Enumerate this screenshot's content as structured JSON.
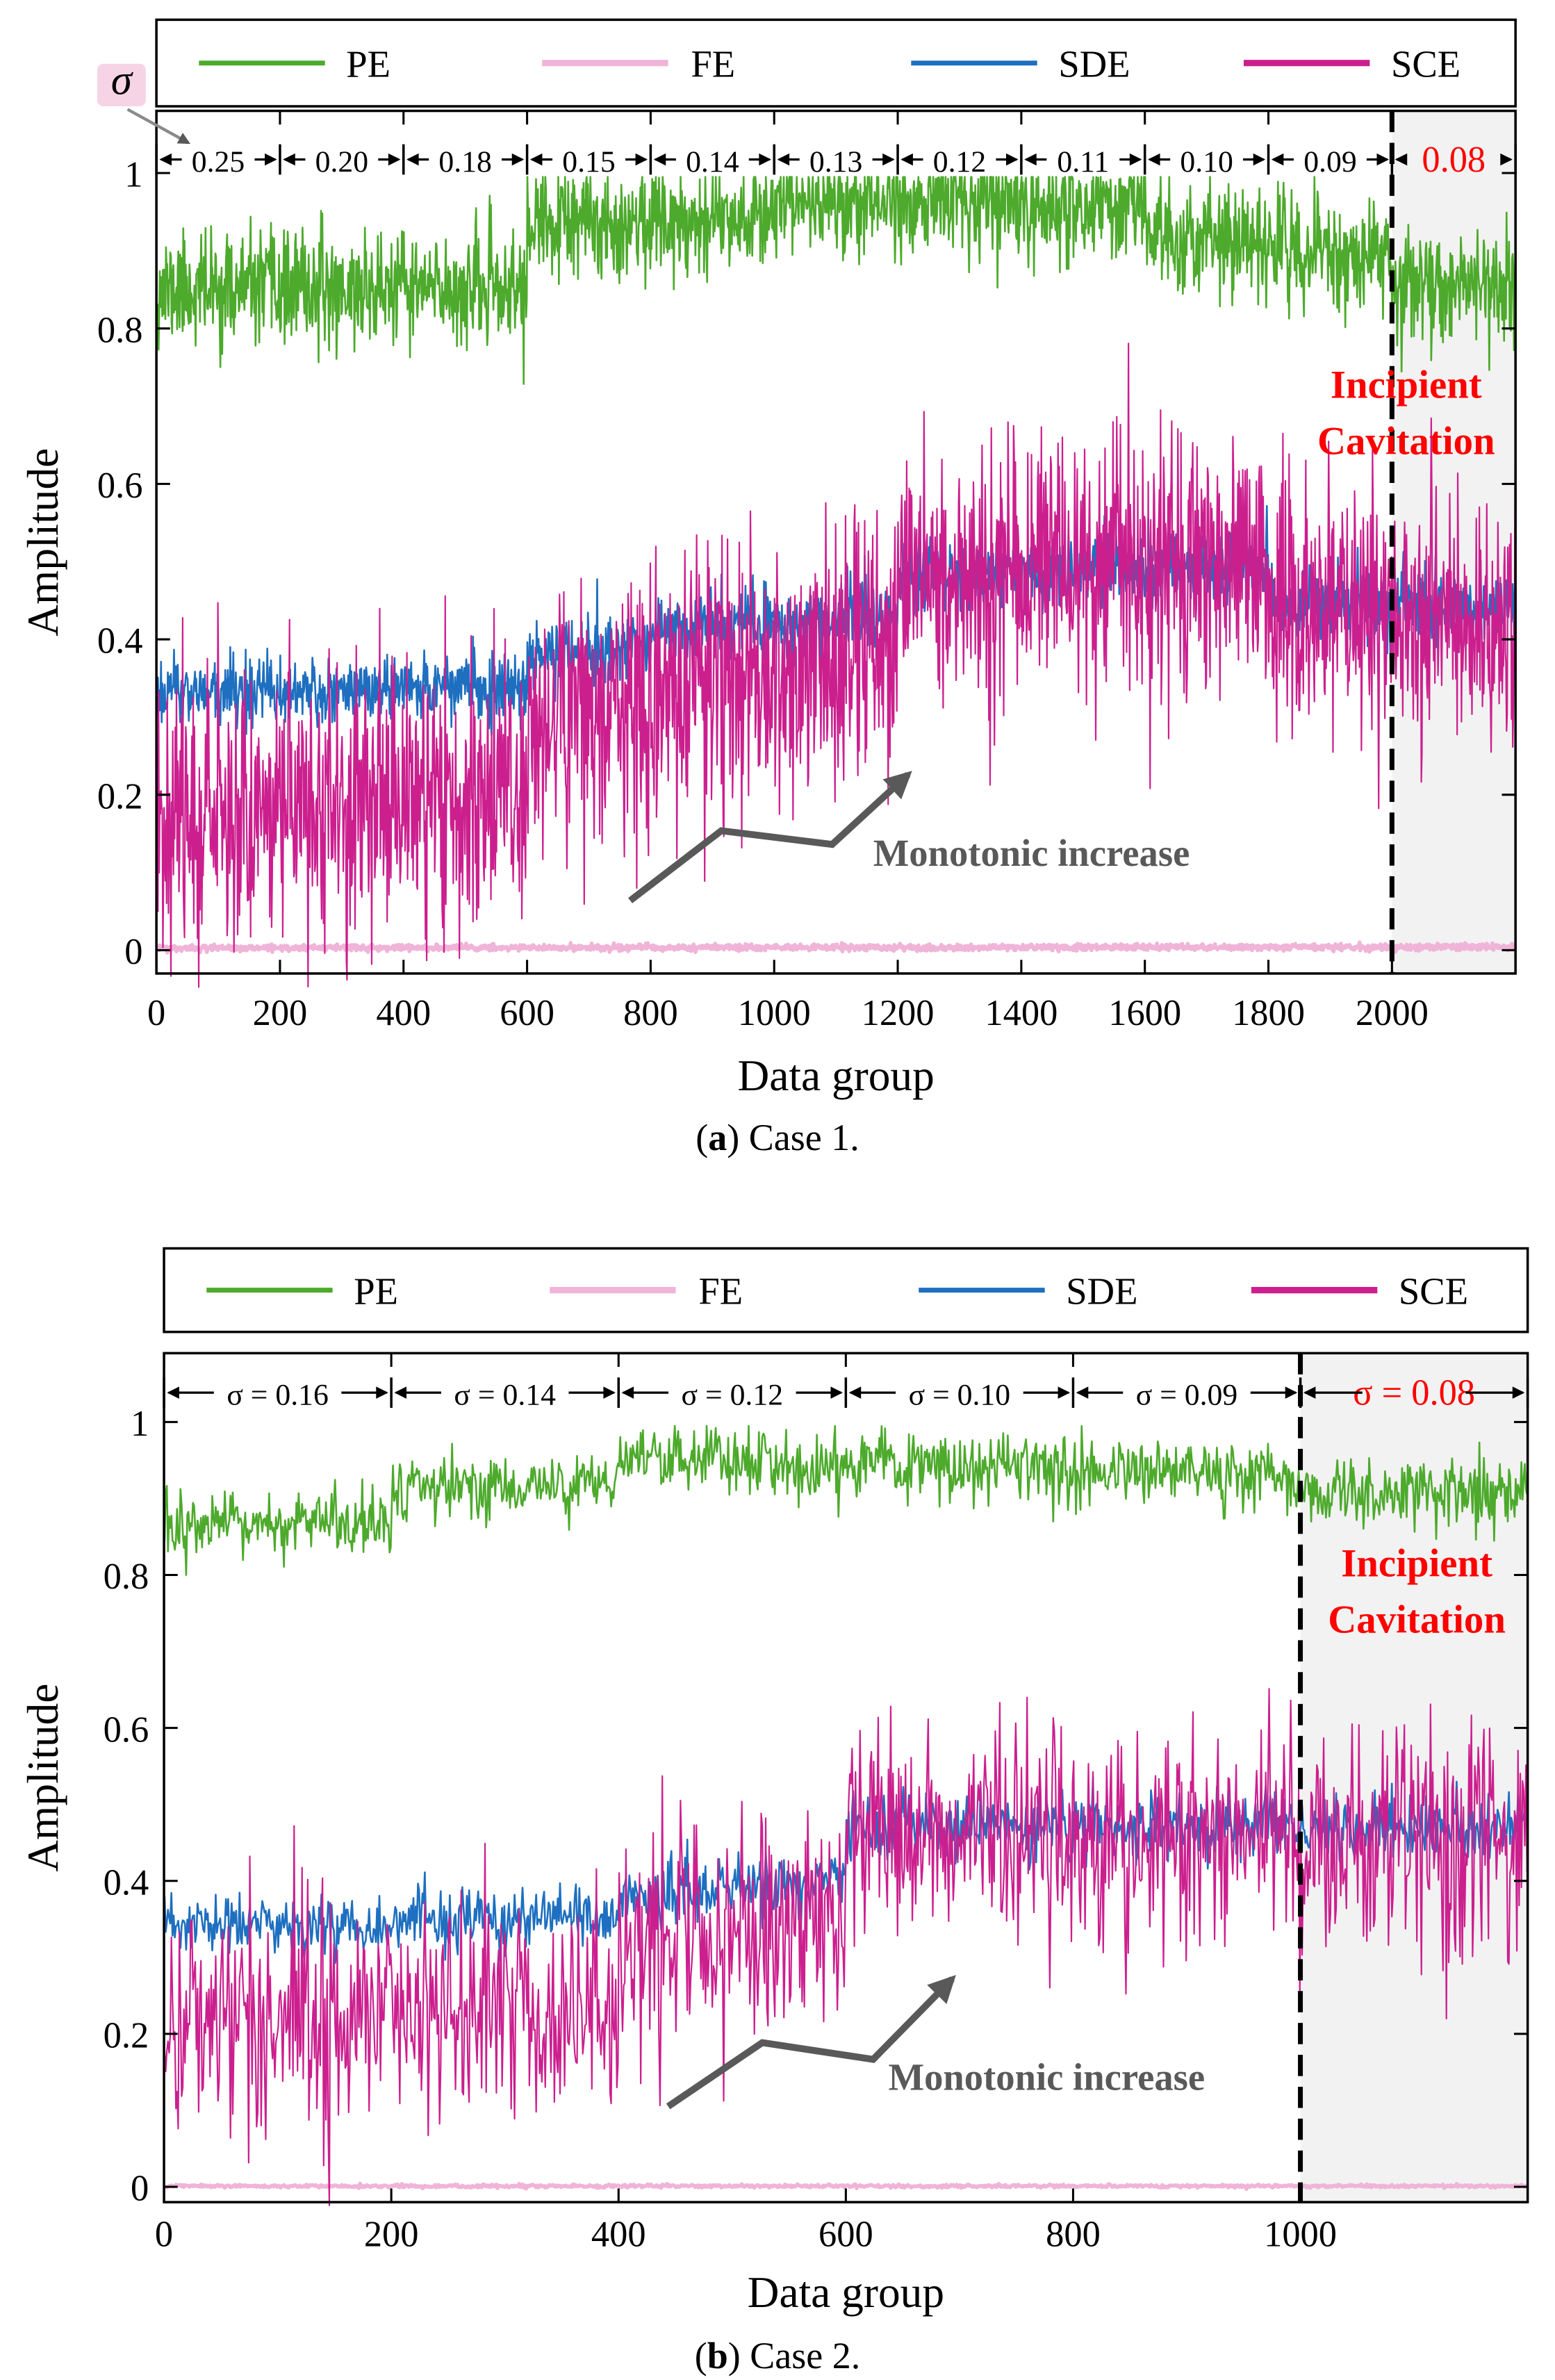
{
  "figure": {
    "captions": [
      {
        "letter": "a",
        "text": " Case 1."
      },
      {
        "letter": "b",
        "text": " Case 2."
      }
    ]
  },
  "chart_data": [
    {
      "type": "line",
      "panel": "a",
      "xlabel": "Data group",
      "ylabel": "Amplitude",
      "xlim": [
        0,
        2200
      ],
      "ylim": [
        -0.03,
        1.08
      ],
      "xticks": [
        0,
        200,
        400,
        600,
        800,
        1000,
        1200,
        1400,
        1600,
        1800,
        2000
      ],
      "yticks": [
        0,
        0.2,
        0.4,
        0.6,
        0.8,
        1
      ],
      "ytick_labels": [
        "0",
        "0.2",
        "0.4",
        "0.6",
        "0.8",
        "1"
      ],
      "legend": {
        "placement": "top, outside",
        "entries": [
          "PE",
          "FE",
          "SDE",
          "SCE"
        ]
      },
      "colors": {
        "PE": "#4daa2c",
        "FE": "#f0b4d8",
        "SDE": "#1e6fc0",
        "SCE": "#cc1f8e",
        "shade": "#f2f2f2",
        "incipient": "#ff0000",
        "arrow": "#595959"
      },
      "sigma_label": "σ",
      "sigma_segments": [
        {
          "from": 0,
          "to": 200,
          "label": "0.25"
        },
        {
          "from": 200,
          "to": 400,
          "label": "0.20"
        },
        {
          "from": 400,
          "to": 600,
          "label": "0.18"
        },
        {
          "from": 600,
          "to": 800,
          "label": "0.15"
        },
        {
          "from": 800,
          "to": 1000,
          "label": "0.14"
        },
        {
          "from": 1000,
          "to": 1200,
          "label": "0.13"
        },
        {
          "from": 1200,
          "to": 1400,
          "label": "0.12"
        },
        {
          "from": 1400,
          "to": 1600,
          "label": "0.11"
        },
        {
          "from": 1600,
          "to": 1800,
          "label": "0.10"
        },
        {
          "from": 1800,
          "to": 2000,
          "label": "0.09"
        },
        {
          "from": 2000,
          "to": 2200,
          "label": "0.08"
        }
      ],
      "incipient_x": 2000,
      "incipient_text": [
        "Incipient",
        "Cavitation"
      ],
      "annotation": "Monotonic increase",
      "series": [
        {
          "name": "PE",
          "n": 2200,
          "seed": 11,
          "noise": 0.035,
          "clipMax": 0.995,
          "segments": [
            {
              "from": 0,
              "to": 600,
              "v0": 0.85,
              "v1": 0.85
            },
            {
              "from": 600,
              "to": 1000,
              "v0": 0.93,
              "v1": 0.95
            },
            {
              "from": 1000,
              "to": 1600,
              "v0": 0.965,
              "v1": 0.96
            },
            {
              "from": 1600,
              "to": 2000,
              "v0": 0.92,
              "v1": 0.89
            },
            {
              "from": 2000,
              "to": 2200,
              "v0": 0.86,
              "v1": 0.85
            }
          ]
        },
        {
          "name": "FE",
          "n": 2200,
          "seed": 3,
          "noise": 0.002,
          "segments": [
            {
              "from": 0,
              "to": 2200,
              "v0": 0.003,
              "v1": 0.004
            }
          ]
        },
        {
          "name": "SDE",
          "n": 2200,
          "seed": 21,
          "noise": 0.022,
          "segments": [
            {
              "from": 0,
              "to": 600,
              "v0": 0.33,
              "v1": 0.34
            },
            {
              "from": 600,
              "to": 800,
              "v0": 0.38,
              "v1": 0.39
            },
            {
              "from": 800,
              "to": 1200,
              "v0": 0.41,
              "v1": 0.43
            },
            {
              "from": 1200,
              "to": 1800,
              "v0": 0.48,
              "v1": 0.5
            },
            {
              "from": 1800,
              "to": 2200,
              "v0": 0.45,
              "v1": 0.44
            }
          ]
        },
        {
          "name": "SCE",
          "n": 2200,
          "seed": 37,
          "noise": 0.085,
          "segments": [
            {
              "from": 0,
              "to": 600,
              "v0": 0.18,
              "v1": 0.2
            },
            {
              "from": 600,
              "to": 1200,
              "v0": 0.29,
              "v1": 0.39
            },
            {
              "from": 1200,
              "to": 1800,
              "v0": 0.48,
              "v1": 0.5
            },
            {
              "from": 1800,
              "to": 2200,
              "v0": 0.44,
              "v1": 0.41
            }
          ]
        }
      ]
    },
    {
      "type": "line",
      "panel": "b",
      "xlabel": "Data group",
      "ylabel": "Amplitude",
      "xlim": [
        0,
        1200
      ],
      "ylim": [
        -0.02,
        1.09
      ],
      "xticks": [
        0,
        200,
        400,
        600,
        800,
        1000
      ],
      "yticks": [
        0,
        0.2,
        0.4,
        0.6,
        0.8,
        1
      ],
      "ytick_labels": [
        "0",
        "0.2",
        "0.4",
        "0.6",
        "0.8",
        "1"
      ],
      "legend": {
        "placement": "top, outside",
        "entries": [
          "PE",
          "FE",
          "SDE",
          "SCE"
        ]
      },
      "colors": {
        "PE": "#4daa2c",
        "FE": "#f0b4d8",
        "SDE": "#1e6fc0",
        "SCE": "#cc1f8e",
        "shade": "#f2f2f2",
        "incipient": "#ff0000",
        "arrow": "#595959"
      },
      "sigma_segments": [
        {
          "from": 0,
          "to": 200,
          "label": "σ = 0.16"
        },
        {
          "from": 200,
          "to": 400,
          "label": "σ = 0.14"
        },
        {
          "from": 400,
          "to": 600,
          "label": "σ = 0.12"
        },
        {
          "from": 600,
          "to": 800,
          "label": "σ = 0.10"
        },
        {
          "from": 800,
          "to": 1000,
          "label": "σ = 0.09"
        },
        {
          "from": 1000,
          "to": 1200,
          "label": "σ = 0.08"
        }
      ],
      "incipient_x": 1000,
      "incipient_text": [
        "Incipient",
        "Cavitation"
      ],
      "annotation": "Monotonic increase",
      "series": [
        {
          "name": "PE",
          "n": 1200,
          "seed": 13,
          "noise": 0.022,
          "clipMax": 0.995,
          "segments": [
            {
              "from": 0,
              "to": 200,
              "v0": 0.86,
              "v1": 0.87
            },
            {
              "from": 200,
              "to": 400,
              "v0": 0.91,
              "v1": 0.92
            },
            {
              "from": 400,
              "to": 1000,
              "v0": 0.95,
              "v1": 0.93
            },
            {
              "from": 1000,
              "to": 1200,
              "v0": 0.91,
              "v1": 0.91
            }
          ]
        },
        {
          "name": "FE",
          "n": 1200,
          "seed": 5,
          "noise": 0.001,
          "segments": [
            {
              "from": 0,
              "to": 1200,
              "v0": 0.001,
              "v1": 0.001
            }
          ]
        },
        {
          "name": "SDE",
          "n": 1200,
          "seed": 23,
          "noise": 0.02,
          "segments": [
            {
              "from": 0,
              "to": 400,
              "v0": 0.34,
              "v1": 0.35
            },
            {
              "from": 400,
              "to": 600,
              "v0": 0.38,
              "v1": 0.4
            },
            {
              "from": 600,
              "to": 1200,
              "v0": 0.47,
              "v1": 0.47
            }
          ]
        },
        {
          "name": "SCE",
          "n": 1200,
          "seed": 41,
          "noise": 0.075,
          "segments": [
            {
              "from": 0,
              "to": 400,
              "v0": 0.22,
              "v1": 0.24
            },
            {
              "from": 400,
              "to": 600,
              "v0": 0.31,
              "v1": 0.35
            },
            {
              "from": 600,
              "to": 1200,
              "v0": 0.47,
              "v1": 0.45
            }
          ]
        }
      ]
    }
  ]
}
